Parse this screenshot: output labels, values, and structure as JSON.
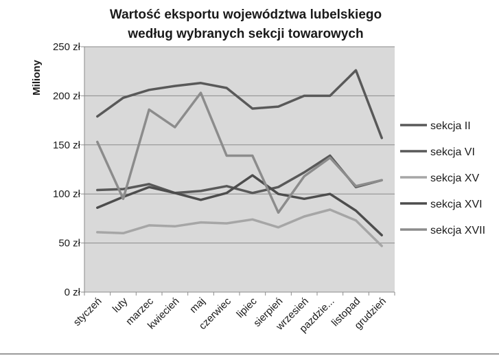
{
  "chart_data": {
    "type": "line",
    "title_lines": [
      "Wartość eksportu województwa lubelskiego",
      "według  wybranych sekcji towarowych"
    ],
    "ylabel": "Miliony",
    "xlabel": "",
    "ylim": [
      0,
      250
    ],
    "yticks": [
      0,
      50,
      100,
      150,
      200,
      250
    ],
    "ytick_labels": [
      "0 zł",
      "50 zł",
      "100 zł",
      "150 zł",
      "200 zł",
      "250 zł"
    ],
    "categories": [
      "styczeń",
      "luty",
      "marzec",
      "kwiecień",
      "maj",
      "czerwiec",
      "lipiec",
      "sierpień",
      "wrzesień",
      "pazdzie...",
      "listopad",
      "grudzień"
    ],
    "grid": true,
    "legend_position": "right",
    "series": [
      {
        "name": "sekcja II",
        "color": "#595959",
        "values": [
          179,
          198,
          206,
          210,
          213,
          208,
          187,
          189,
          200,
          200,
          226,
          157
        ]
      },
      {
        "name": "sekcja VI",
        "color": "#595959",
        "values": [
          104,
          105,
          110,
          101,
          103,
          108,
          101,
          107,
          122,
          139,
          107,
          114
        ]
      },
      {
        "name": "sekcja XV",
        "color": "#a6a6a6",
        "values": [
          61,
          60,
          68,
          67,
          71,
          70,
          74,
          66,
          77,
          84,
          73,
          47
        ]
      },
      {
        "name": "sekcja XVI",
        "color": "#4d4d4d",
        "values": [
          86,
          97,
          107,
          101,
          94,
          101,
          119,
          100,
          95,
          100,
          83,
          58
        ]
      },
      {
        "name": "sekcja XVII",
        "color": "#8c8c8c",
        "values": [
          153,
          95,
          186,
          168,
          203,
          139,
          139,
          81,
          118,
          137,
          108,
          114
        ]
      }
    ]
  }
}
